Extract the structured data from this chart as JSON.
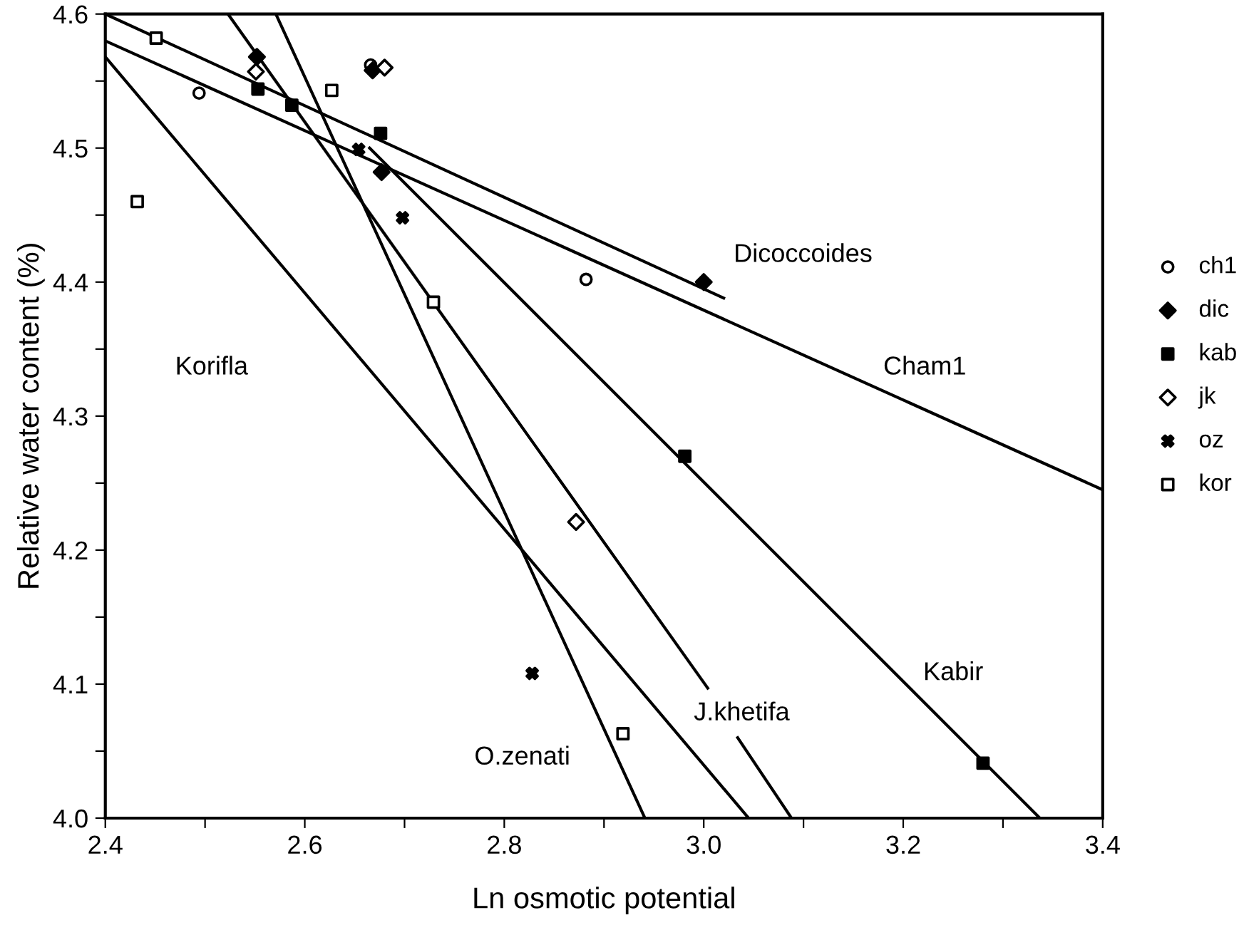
{
  "chart_data": {
    "type": "scatter",
    "xlabel": "Ln osmotic potential",
    "ylabel": "Relative water content (%)",
    "xlim": [
      2.4,
      3.4
    ],
    "ylim": [
      4.0,
      4.6
    ],
    "xticks": [
      2.4,
      {
        "value": 2.5,
        "label": null
      },
      2.6,
      {
        "value": 2.7,
        "label": null
      },
      2.8,
      {
        "value": 2.9,
        "label": null
      },
      {
        "value": 3.0,
        "label": "3.0"
      },
      {
        "value": 3.1,
        "label": null
      },
      3.2,
      {
        "value": 3.3,
        "label": null
      },
      3.4
    ],
    "yticks": [
      {
        "value": 4.0,
        "label": "4.0"
      },
      {
        "value": 4.05,
        "label": null
      },
      4.1,
      {
        "value": 4.15,
        "label": null
      },
      4.2,
      {
        "value": 4.25,
        "label": null
      },
      4.3,
      {
        "value": 4.35,
        "label": null
      },
      4.4,
      {
        "value": 4.45,
        "label": null
      },
      4.5,
      {
        "value": 4.55,
        "label": null
      },
      4.6
    ],
    "grid": false,
    "legend": "right",
    "series": [
      {
        "name": "ch1",
        "color": "#ffffff",
        "marker": "circle",
        "x": [
          2.494,
          2.666,
          2.882
        ],
        "values": [
          4.541,
          4.562,
          4.402
        ]
      },
      {
        "name": "dic",
        "color": "#000000",
        "marker": "diamond",
        "x": [
          2.552,
          2.668,
          2.677,
          3.0
        ],
        "values": [
          4.568,
          4.558,
          4.482,
          4.4
        ]
      },
      {
        "name": "kab",
        "color": "#000000",
        "marker": "square",
        "x": [
          2.553,
          2.587,
          2.676,
          2.981,
          3.28
        ],
        "values": [
          4.544,
          4.532,
          4.511,
          4.27,
          4.041
        ]
      },
      {
        "name": "jk",
        "color": "#ffffff",
        "marker": "diamond",
        "x": [
          2.551,
          2.68,
          2.872
        ],
        "values": [
          4.557,
          4.56,
          4.221
        ]
      },
      {
        "name": "oz",
        "color": "#000000",
        "marker": "cross",
        "x": [
          2.654,
          2.698,
          2.828
        ],
        "values": [
          4.499,
          4.448,
          4.108
        ]
      },
      {
        "name": "kor",
        "color": "#ffffff",
        "marker": "square",
        "x": [
          2.432,
          2.451,
          2.627,
          2.729,
          2.919
        ],
        "values": [
          4.46,
          4.582,
          4.543,
          4.385,
          4.063
        ]
      },
      {
        "type": "line",
        "color": "#000000",
        "x": [
          2.4,
          3.4
        ],
        "values": [
          4.58,
          4.245
        ]
      },
      {
        "type": "line",
        "color": "#000000",
        "x": [
          2.4,
          3.02
        ],
        "values": [
          4.6,
          4.388
        ]
      },
      {
        "type": "line",
        "color": "#000000",
        "x": [
          2.4,
          3.045
        ],
        "values": [
          4.568,
          4.0
        ]
      },
      {
        "type": "line",
        "color": "#000000",
        "x": [
          2.523,
          3.004,
          3.02,
          3.034,
          3.088
        ],
        "values": [
          4.6,
          4.097,
          null,
          4.06,
          4.0
        ]
      },
      {
        "type": "line",
        "color": "#000000",
        "x": [
          2.571,
          2.941
        ],
        "values": [
          4.6,
          4.0
        ]
      },
      {
        "type": "line",
        "color": "#000000",
        "x": [
          2.665,
          3.337
        ],
        "values": [
          4.5,
          4.0
        ]
      }
    ],
    "annotations": [
      "Dicoccoides",
      "Cham1",
      "Korifla",
      "Kabir",
      "J.khetifa",
      "O.zenati"
    ]
  }
}
